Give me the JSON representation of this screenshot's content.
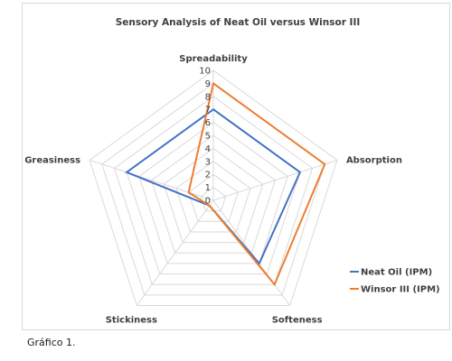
{
  "caption": "Gráfico 1.",
  "chart_data": {
    "type": "radar",
    "title": "Sensory Analysis of Neat Oil versus Winsor III",
    "axes": [
      "Spreadability",
      "Absorption",
      "Softeness",
      "Stickiness",
      "Greasiness"
    ],
    "rlim": [
      0,
      10
    ],
    "ticks": [
      "0",
      "1",
      "2",
      "3",
      "4",
      "5",
      "6",
      "7",
      "8",
      "9",
      "10"
    ],
    "grid": true,
    "legend_position": "right",
    "series": [
      {
        "name": "Neat Oil (IPM)",
        "color": "#4472c4",
        "values": [
          7,
          7,
          6,
          0.5,
          7
        ]
      },
      {
        "name": "Winsor III (IPM)",
        "color": "#ed7d31",
        "values": [
          9,
          9,
          8,
          0.5,
          2
        ]
      }
    ]
  }
}
